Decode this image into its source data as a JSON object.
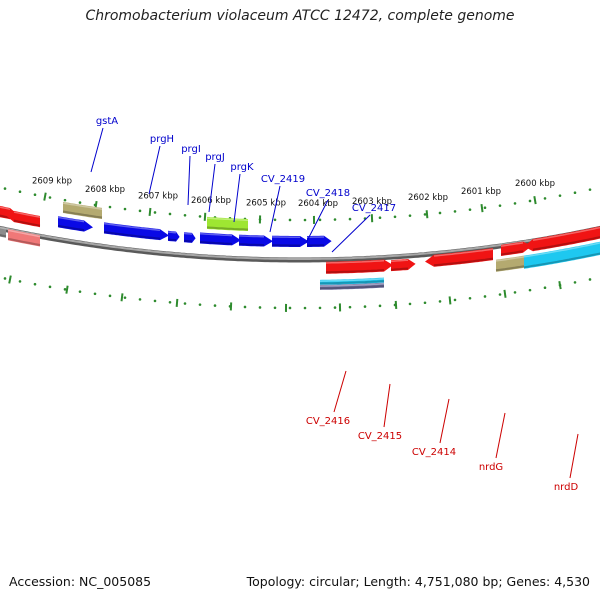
{
  "title": "Chromobacterium violaceum ATCC 12472, complete genome",
  "footer": {
    "accession": "Accession: NC_005085",
    "summary": "Topology: circular; Length: 4,751,080 bp; Genes: 4,530"
  },
  "colors": {
    "forward_label": "#0000cc",
    "reverse_label": "#cc0000",
    "tick": "#2e8b2e",
    "backbone": "#808080"
  },
  "ticks": [
    {
      "label": "2609 kbp"
    },
    {
      "label": "2608 kbp"
    },
    {
      "label": "2607 kbp"
    },
    {
      "label": "2606 kbp"
    },
    {
      "label": "2605 kbp"
    },
    {
      "label": "2604 kbp"
    },
    {
      "label": "2603 kbp"
    },
    {
      "label": "2602 kbp"
    },
    {
      "label": "2601 kbp"
    },
    {
      "label": "2600 kbp"
    }
  ],
  "forward_labels": [
    {
      "name": "gstA"
    },
    {
      "name": "prgH"
    },
    {
      "name": "prgI"
    },
    {
      "name": "prgJ"
    },
    {
      "name": "prgK"
    },
    {
      "name": "CV_2419"
    },
    {
      "name": "CV_2418"
    },
    {
      "name": "CV_2417"
    }
  ],
  "reverse_labels": [
    {
      "name": "CV_2416"
    },
    {
      "name": "CV_2415"
    },
    {
      "name": "CV_2414"
    },
    {
      "name": "nrdG"
    },
    {
      "name": "nrdD"
    }
  ],
  "feature_colors": {
    "blue": "#0a0ae6",
    "red": "#f01414",
    "pink": "#f07878",
    "olive": "#b4aa70",
    "green": "#9ee632",
    "cyan": "#1ec8f0",
    "gray": "#8c8c8c",
    "slate": "#7070a0"
  }
}
